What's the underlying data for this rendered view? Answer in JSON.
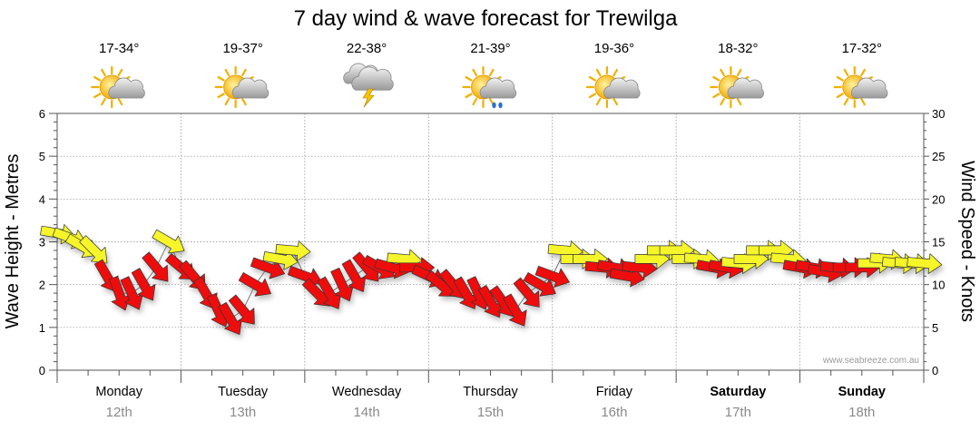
{
  "chart_data": {
    "type": "line",
    "title": "7 day wind & wave forecast for Trewilga",
    "ylabel_left": "Wave Height - Metres",
    "ylabel_right": "Wind Speed - Knots",
    "ylim_left": [
      0,
      6
    ],
    "ylim_right": [
      0,
      30
    ],
    "left_ticks": [
      "0",
      "1",
      "2",
      "3",
      "4",
      "5",
      "6"
    ],
    "right_ticks": [
      "0",
      "5",
      "10",
      "15",
      "20",
      "25",
      "30"
    ],
    "grid": true,
    "watermark": "www.seabreeze.com.au",
    "colors": {
      "strong_wind": "#ee1111",
      "light_wind": "#f5f52a",
      "arrow_outline": "#333333",
      "grid": "#888888"
    },
    "days": [
      {
        "day": "Monday",
        "date": "12th",
        "temp": "17-34°",
        "icon": "sun-cloud-icon",
        "bold": false
      },
      {
        "day": "Tuesday",
        "date": "13th",
        "temp": "19-37°",
        "icon": "sun-cloud-icon",
        "bold": false
      },
      {
        "day": "Wednesday",
        "date": "14th",
        "temp": "22-38°",
        "icon": "storm-cloud-icon",
        "bold": false
      },
      {
        "day": "Thursday",
        "date": "15th",
        "temp": "21-39°",
        "icon": "sun-rain-icon",
        "bold": false
      },
      {
        "day": "Friday",
        "date": "16th",
        "temp": "19-36°",
        "icon": "sun-cloud-icon",
        "bold": false
      },
      {
        "day": "Saturday",
        "date": "17th",
        "temp": "18-32°",
        "icon": "sun-cloud-icon",
        "bold": true
      },
      {
        "day": "Sunday",
        "date": "18th",
        "temp": "17-32°",
        "icon": "sun-cloud-icon",
        "bold": true
      }
    ],
    "series": [
      {
        "name": "Wind Speed",
        "time_days": [
          0.0,
          0.1,
          0.2,
          0.3,
          0.4,
          0.5,
          0.6,
          0.7,
          0.8,
          0.9,
          1.0,
          1.1,
          1.2,
          1.3,
          1.4,
          1.5,
          1.6,
          1.7,
          1.8,
          1.9,
          2.0,
          2.1,
          2.2,
          2.3,
          2.4,
          2.5,
          2.6,
          2.7,
          2.8,
          2.9,
          3.0,
          3.1,
          3.2,
          3.3,
          3.4,
          3.5,
          3.6,
          3.7,
          3.8,
          3.9,
          4.0,
          4.1,
          4.2,
          4.3,
          4.4,
          4.5,
          4.6,
          4.7,
          4.8,
          4.9,
          5.0,
          5.1,
          5.2,
          5.3,
          5.4,
          5.5,
          5.6,
          5.7,
          5.8,
          5.9,
          6.0,
          6.1,
          6.2,
          6.3,
          6.4,
          6.5,
          6.6,
          6.7,
          6.8,
          6.9,
          7.0
        ],
        "knots": [
          16,
          15.5,
          14.5,
          14,
          11,
          9,
          9,
          10,
          12,
          15,
          12,
          11,
          9,
          7,
          6,
          7,
          10,
          12,
          13,
          14,
          11,
          9,
          9,
          10,
          11,
          12,
          12,
          12,
          13,
          12,
          11,
          10,
          10,
          9,
          9,
          8,
          8,
          7,
          9,
          10,
          11,
          14,
          13,
          13,
          12,
          12,
          11,
          12,
          13,
          14,
          14,
          13,
          13,
          12,
          12,
          12.5,
          13,
          14,
          14,
          13,
          12,
          12,
          11.5,
          12,
          12,
          12,
          12.5,
          13,
          12.5,
          12.5,
          12.5
        ],
        "direction_deg": [
          100,
          110,
          120,
          135,
          150,
          160,
          155,
          150,
          140,
          120,
          130,
          140,
          150,
          155,
          150,
          140,
          120,
          110,
          100,
          95,
          110,
          135,
          150,
          155,
          150,
          140,
          120,
          105,
          95,
          90,
          115,
          130,
          140,
          150,
          155,
          150,
          145,
          150,
          140,
          120,
          110,
          95,
          90,
          90,
          95,
          100,
          100,
          95,
          90,
          90,
          90,
          90,
          95,
          100,
          100,
          95,
          90,
          90,
          90,
          95,
          100,
          100,
          100,
          95,
          90,
          90,
          90,
          95,
          95,
          95,
          95
        ]
      }
    ]
  }
}
